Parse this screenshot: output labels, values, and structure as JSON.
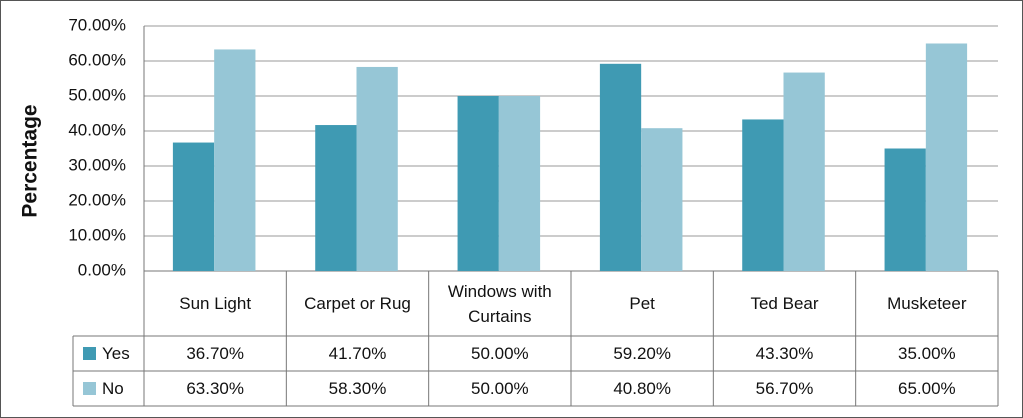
{
  "chart_data": {
    "type": "bar",
    "y_label": "Percentage",
    "categories": [
      "Sun Light",
      "Carpet or Rug",
      "Windows with Curtains",
      "Pet",
      "Ted Bear",
      "Musketeer"
    ],
    "series": [
      {
        "name": "Yes",
        "color": "#3f9ab3",
        "values": [
          36.7,
          41.7,
          50,
          59.2,
          43.3,
          35
        ],
        "value_labels": [
          "36.70%",
          "41.70%",
          "50.00%",
          "59.20%",
          "43.30%",
          "35.00%"
        ]
      },
      {
        "name": "No",
        "color": "#96c6d6",
        "values": [
          63.3,
          58.3,
          50,
          40.8,
          56.7,
          65
        ],
        "value_labels": [
          "63.30%",
          "58.30%",
          "50.00%",
          "40.80%",
          "56.70%",
          "65.00%"
        ]
      }
    ],
    "ylim": [
      0,
      70
    ],
    "yticks": [
      {
        "value": 0,
        "label": "0.00%"
      },
      {
        "value": 10,
        "label": "10.00%"
      },
      {
        "value": 20,
        "label": "20.00%"
      },
      {
        "value": 30,
        "label": "30.00%"
      },
      {
        "value": 40,
        "label": "40.00%"
      },
      {
        "value": 50,
        "label": "50.00%"
      },
      {
        "value": 60,
        "label": "60.00%"
      },
      {
        "value": 70,
        "label": "70.00%"
      }
    ],
    "grid": true
  }
}
